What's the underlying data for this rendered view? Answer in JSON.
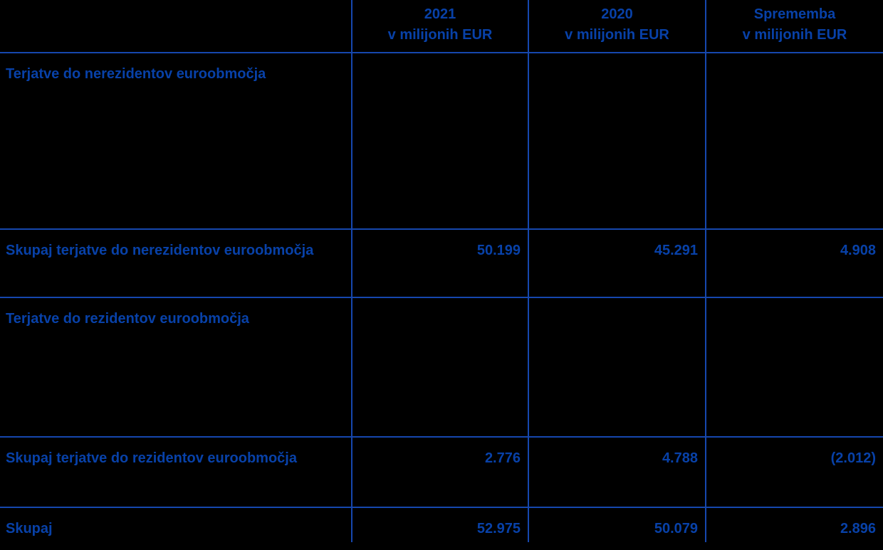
{
  "theme": {
    "background": "#000000",
    "text_color": "#0841a8",
    "line_color": "#1647ae"
  },
  "table": {
    "header": {
      "corner": "",
      "columns": [
        {
          "year": "2021",
          "unit": "v milijonih EUR"
        },
        {
          "year": "2020",
          "unit": "v milijonih EUR"
        },
        {
          "year": "Sprememba",
          "unit": "v milijonih EUR"
        }
      ]
    },
    "rows": [
      {
        "type": "section",
        "label": "Terjatve do nerezidentov euroobmočja",
        "values": [
          "",
          "",
          ""
        ]
      },
      {
        "type": "subtotal",
        "label": "Skupaj terjatve do nerezidentov euroobmočja",
        "values": [
          "50.199",
          "45.291",
          "4.908"
        ]
      },
      {
        "type": "section",
        "label": "Terjatve do rezidentov euroobmočja",
        "values": [
          "",
          "",
          ""
        ]
      },
      {
        "type": "subtotal",
        "label": "Skupaj terjatve do rezidentov euroobmočja",
        "values": [
          "2.776",
          "4.788",
          "(2.012)"
        ]
      },
      {
        "type": "grand-total",
        "label": "Skupaj",
        "values": [
          "52.975",
          "50.079",
          "2.896"
        ]
      }
    ]
  }
}
